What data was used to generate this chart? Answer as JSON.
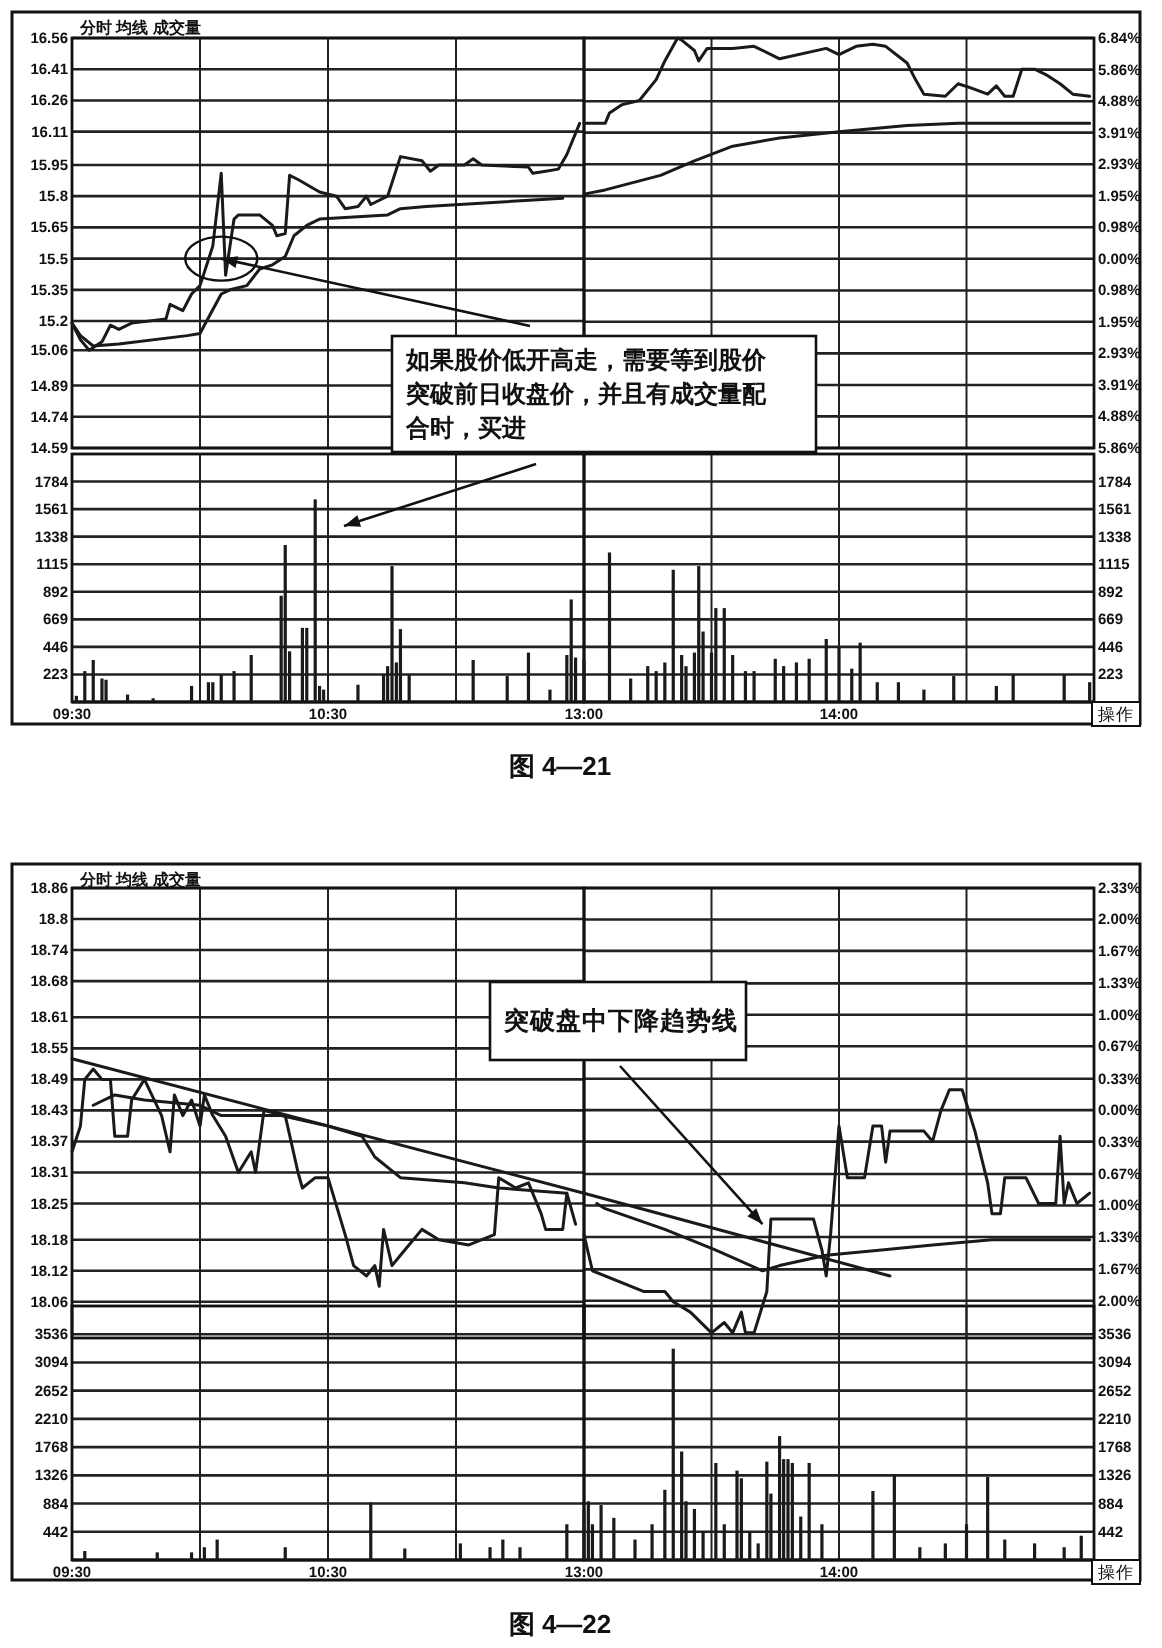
{
  "chart_data": [
    {
      "type": "line",
      "title": "分时 均线 成交量",
      "xlim": [
        9.5,
        11.5
      ],
      "ylim": [
        14.59,
        16.56
      ],
      "grid": true,
      "tick_labels": "y",
      "xticks": [
        {
          "value": 9.5,
          "label": null
        },
        {
          "value": 10,
          "label": null
        },
        {
          "value": 10.5,
          "label": null
        },
        {
          "value": 11,
          "label": null
        }
      ],
      "yticks": [
        14.59,
        14.74,
        14.89,
        15.06,
        15.2,
        15.35,
        15.5,
        15.65,
        15.8,
        15.95,
        16.11,
        16.26,
        16.41,
        16.56
      ],
      "series": [
        {
          "color": "#1a1a1a",
          "x": [
            9.5,
            9.533,
            9.567,
            9.617,
            9.65,
            9.683,
            9.733,
            9.867,
            9.883,
            9.933,
            9.967,
            10,
            10.05,
            10.083,
            10.1,
            10.133,
            10.15,
            10.233,
            10.283,
            10.3,
            10.333,
            10.35,
            10.383,
            10.467,
            10.533,
            10.567,
            10.617,
            10.65,
            10.667,
            10.733,
            10.783,
            10.867,
            10.9,
            10.933,
            11.033,
            11.067,
            11.1,
            11.283,
            11.3,
            11.35,
            11.4,
            11.433,
            11.483
          ],
          "values": [
            15.19,
            15.11,
            15.06,
            15.1,
            15.18,
            15.16,
            15.19,
            15.21,
            15.28,
            15.25,
            15.33,
            15.37,
            15.56,
            15.91,
            15.42,
            15.69,
            15.71,
            15.71,
            15.66,
            15.61,
            15.62,
            15.9,
            15.88,
            15.82,
            15.8,
            15.74,
            15.75,
            15.8,
            15.76,
            15.8,
            15.99,
            15.97,
            15.92,
            15.95,
            15.95,
            15.98,
            15.95,
            15.94,
            15.91,
            15.92,
            15.93,
            16.0,
            16.15
          ]
        },
        {
          "color": "#1a1a1a",
          "x": [
            9.5,
            9.533,
            9.583,
            9.683,
            9.95,
            10,
            10.017,
            10.083,
            10.117,
            10.183,
            10.233,
            10.283,
            10.333,
            10.367,
            10.417,
            10.467,
            10.733,
            10.783,
            10.883,
            11.417
          ],
          "values": [
            15.19,
            15.13,
            15.08,
            15.09,
            15.13,
            15.14,
            15.18,
            15.33,
            15.35,
            15.37,
            15.45,
            15.47,
            15.51,
            15.61,
            15.66,
            15.69,
            15.71,
            15.74,
            15.75,
            15.79
          ]
        }
      ],
      "annotations": [
        {
          "text": "如果股价低开高走，需要等到股价突破前日收盘价，并且有成交量配合时，买进",
          "x": 10.083,
          "y": 15.5
        }
      ]
    },
    {
      "type": "line",
      "xlim": [
        13,
        15
      ],
      "ylim": [
        14.59,
        16.56
      ],
      "grid": true,
      "tick_labels": "y",
      "xticks": [
        {
          "value": 13,
          "label": null
        },
        {
          "value": 13.5,
          "label": null
        },
        {
          "value": 14,
          "label": null
        },
        {
          "value": 14.5,
          "label": null
        }
      ],
      "y2lim": [
        -5.86,
        6.84
      ],
      "y2ticks": [
        {
          "value": -5.86,
          "label": "5.86%"
        },
        {
          "value": -4.88,
          "label": "4.88%"
        },
        {
          "value": -3.91,
          "label": "3.91%"
        },
        {
          "value": -2.93,
          "label": "2.93%"
        },
        {
          "value": -1.95,
          "label": "1.95%"
        },
        {
          "value": -0.98,
          "label": "0.98%"
        },
        {
          "value": 0,
          "label": "0.00%"
        },
        {
          "value": 0.98,
          "label": "0.98%"
        },
        {
          "value": 1.95,
          "label": "1.95%"
        },
        {
          "value": 2.93,
          "label": "2.93%"
        },
        {
          "value": 3.91,
          "label": "3.91%"
        },
        {
          "value": 4.88,
          "label": "4.88%"
        },
        {
          "value": 5.86,
          "label": "5.86%"
        },
        {
          "value": 6.84,
          "label": "6.84%"
        }
      ],
      "series": [
        {
          "color": "#1a1a1a",
          "x": [
            13,
            13.083,
            13.1,
            13.15,
            13.217,
            13.283,
            13.317,
            13.367,
            13.383,
            13.433,
            13.45,
            13.483,
            13.583,
            13.667,
            13.767,
            13.95,
            14,
            14.067,
            14.133,
            14.183,
            14.267,
            14.3,
            14.333,
            14.417,
            14.467,
            14.517,
            14.583,
            14.617,
            14.65,
            14.683,
            14.717,
            14.767,
            14.817,
            14.867,
            14.917,
            14.983
          ],
          "values": [
            16.15,
            16.15,
            16.2,
            16.24,
            16.26,
            16.36,
            16.45,
            16.56,
            16.55,
            16.5,
            16.45,
            16.51,
            16.51,
            16.52,
            16.46,
            16.51,
            16.48,
            16.52,
            16.53,
            16.52,
            16.44,
            16.36,
            16.29,
            16.28,
            16.34,
            16.32,
            16.29,
            16.33,
            16.28,
            16.28,
            16.41,
            16.41,
            16.38,
            16.34,
            16.29,
            16.28
          ]
        },
        {
          "color": "#1a1a1a",
          "x": [
            13,
            13.083,
            13.3,
            13.433,
            13.583,
            13.767,
            14,
            14.267,
            14.467,
            14.983
          ],
          "values": [
            15.81,
            15.83,
            15.9,
            15.97,
            16.04,
            16.08,
            16.11,
            16.14,
            16.15,
            16.15
          ]
        }
      ]
    },
    {
      "type": "bar",
      "xlim": [
        9.5,
        11.5
      ],
      "ylim": [
        0,
        2007
      ],
      "grid": true,
      "color": "#1a1a1a",
      "xticks": [
        {
          "value": 9.5,
          "label": "09:30"
        },
        {
          "value": 10,
          "label": null
        },
        {
          "value": 10.5,
          "label": "10:30"
        },
        {
          "value": 11,
          "label": null
        }
      ],
      "yticks": [
        223,
        446,
        669,
        892,
        1115,
        1338,
        1561,
        1784
      ],
      "x": [
        9.517,
        9.55,
        9.583,
        9.617,
        9.633,
        9.717,
        9.817,
        9.967,
        10.033,
        10.05,
        10.083,
        10.133,
        10.2,
        10.317,
        10.333,
        10.35,
        10.4,
        10.417,
        10.45,
        10.467,
        10.483,
        10.617,
        10.717,
        10.733,
        10.75,
        10.767,
        10.783,
        10.817,
        11.067,
        11.2,
        11.283,
        11.367,
        11.433,
        11.45,
        11.467
      ],
      "values": [
        50,
        250,
        340,
        190,
        180,
        60,
        30,
        130,
        160,
        160,
        220,
        250,
        380,
        860,
        1270,
        410,
        600,
        600,
        1640,
        130,
        100,
        140,
        220,
        290,
        1100,
        320,
        590,
        220,
        340,
        210,
        400,
        100,
        380,
        830,
        360
      ]
    },
    {
      "type": "bar",
      "xlim": [
        13,
        15
      ],
      "ylim": [
        0,
        2007
      ],
      "grid": true,
      "color": "#1a1a1a",
      "xticks": [
        {
          "value": 13,
          "label": "13:00"
        },
        {
          "value": 13.5,
          "label": null
        },
        {
          "value": 14,
          "label": "14:00"
        },
        {
          "value": 14.5,
          "label": null
        }
      ],
      "yticks": [
        223,
        446,
        669,
        892,
        1115,
        1338,
        1561,
        1784
      ],
      "x": [
        13,
        13.1,
        13.183,
        13.25,
        13.283,
        13.317,
        13.35,
        13.383,
        13.4,
        13.433,
        13.45,
        13.467,
        13.5,
        13.517,
        13.55,
        13.583,
        13.633,
        13.667,
        13.75,
        13.783,
        13.833,
        13.883,
        13.95,
        14,
        14.05,
        14.083,
        14.15,
        14.233,
        14.333,
        14.45,
        14.617,
        14.683,
        14.883,
        14.983
      ],
      "values": [
        340,
        1210,
        190,
        290,
        250,
        320,
        1070,
        380,
        290,
        400,
        1100,
        570,
        400,
        760,
        760,
        380,
        250,
        250,
        350,
        290,
        320,
        350,
        510,
        450,
        270,
        480,
        160,
        160,
        100,
        210,
        130,
        220,
        220,
        160
      ],
      "annotations": [
        "操作",
        "图 4—21"
      ]
    },
    {
      "type": "line",
      "title": "分时 均线 成交量",
      "xlim": [
        9.5,
        11.5
      ],
      "ylim": [
        17.99,
        18.86
      ],
      "grid": true,
      "tick_labels": "y",
      "xticks": [
        {
          "value": 9.5,
          "label": null
        },
        {
          "value": 10,
          "label": null
        },
        {
          "value": 10.5,
          "label": null
        },
        {
          "value": 11,
          "label": null
        }
      ],
      "yticks": [
        18.06,
        18.12,
        18.18,
        18.25,
        18.31,
        18.37,
        18.43,
        18.49,
        18.55,
        18.61,
        18.68,
        18.74,
        18.8,
        18.86
      ],
      "series": [
        {
          "color": "#1a1a1a",
          "x": [
            9.5,
            9.533,
            9.55,
            9.583,
            9.617,
            9.65,
            9.667,
            9.717,
            9.733,
            9.783,
            9.85,
            9.883,
            9.9,
            9.933,
            9.967,
            10,
            10.017,
            10.05,
            10.1,
            10.15,
            10.2,
            10.217,
            10.25,
            10.333,
            10.383,
            10.4,
            10.45,
            10.5,
            10.567,
            10.6,
            10.65,
            10.683,
            10.7,
            10.717,
            10.75,
            10.783,
            10.867,
            10.933,
            11.05,
            11.15,
            11.167,
            11.233,
            11.283,
            11.333,
            11.35,
            11.417,
            11.433,
            11.467
          ],
          "values": [
            18.35,
            18.4,
            18.49,
            18.51,
            18.49,
            18.49,
            18.38,
            18.38,
            18.45,
            18.49,
            18.42,
            18.35,
            18.46,
            18.42,
            18.45,
            18.4,
            18.46,
            18.42,
            18.38,
            18.31,
            18.35,
            18.31,
            18.43,
            18.42,
            18.31,
            18.28,
            18.3,
            18.3,
            18.19,
            18.13,
            18.11,
            18.13,
            18.09,
            18.2,
            18.13,
            18.15,
            18.2,
            18.18,
            18.17,
            18.19,
            18.3,
            18.28,
            18.29,
            18.23,
            18.2,
            18.2,
            18.27,
            18.21
          ]
        },
        {
          "color": "#1a1a1a",
          "x": [
            9.583,
            9.667,
            9.783,
            10,
            10.083,
            10.317,
            10.5,
            10.633,
            10.683,
            10.783,
            11.033,
            11.167,
            11.433
          ],
          "values": [
            18.44,
            18.46,
            18.45,
            18.44,
            18.42,
            18.42,
            18.4,
            18.38,
            18.34,
            18.3,
            18.29,
            18.28,
            18.27
          ]
        },
        {
          "color": "#1a1a1a",
          "x": [
            9.5,
            11.5
          ],
          "values": [
            18.53,
            18.27
          ]
        }
      ]
    },
    {
      "type": "line",
      "xlim": [
        13,
        15
      ],
      "ylim": [
        17.99,
        18.86
      ],
      "grid": true,
      "tick_labels": "y",
      "xticks": [
        {
          "value": 13,
          "label": null
        },
        {
          "value": 13.5,
          "label": null
        },
        {
          "value": 14,
          "label": null
        },
        {
          "value": 14.5,
          "label": null
        }
      ],
      "y2lim": [
        -2.39,
        2.33
      ],
      "y2ticks": [
        {
          "value": -2.0,
          "label": "2.00%"
        },
        {
          "value": -1.67,
          "label": "1.67%"
        },
        {
          "value": -1.33,
          "label": "1.33%"
        },
        {
          "value": -1.0,
          "label": "1.00%"
        },
        {
          "value": -0.67,
          "label": "0.67%"
        },
        {
          "value": -0.33,
          "label": "0.33%"
        },
        {
          "value": 0,
          "label": "0.00%"
        },
        {
          "value": 0.33,
          "label": "0.33%"
        },
        {
          "value": 0.67,
          "label": "0.67%"
        },
        {
          "value": 1.0,
          "label": "1.00%"
        },
        {
          "value": 1.33,
          "label": "1.33%"
        },
        {
          "value": 1.67,
          "label": "1.67%"
        },
        {
          "value": 2.0,
          "label": "2.00%"
        },
        {
          "value": 2.33,
          "label": "2.33%"
        }
      ],
      "series": [
        {
          "color": "#1a1a1a",
          "x": [
            13,
            13.033,
            13.233,
            13.317,
            13.35,
            13.417,
            13.5,
            13.55,
            13.583,
            13.617,
            13.633,
            13.667,
            13.717,
            13.733,
            13.9,
            13.933,
            13.95,
            13.967,
            14,
            14.033,
            14.1,
            14.133,
            14.167,
            14.183,
            14.2,
            14.333,
            14.367,
            14.4,
            14.433,
            14.483,
            14.533,
            14.583,
            14.6,
            14.633,
            14.65,
            14.733,
            14.783,
            14.85,
            14.867,
            14.883,
            14.9,
            14.933,
            14.983
          ],
          "values": [
            18.19,
            18.12,
            18.08,
            18.08,
            18.06,
            18.04,
            18.0,
            18.02,
            18.0,
            18.04,
            18.0,
            18.0,
            18.08,
            18.22,
            18.22,
            18.16,
            18.11,
            18.19,
            18.4,
            18.3,
            18.3,
            18.4,
            18.4,
            18.33,
            18.39,
            18.39,
            18.37,
            18.43,
            18.47,
            18.47,
            18.39,
            18.29,
            18.23,
            18.23,
            18.3,
            18.3,
            18.25,
            18.25,
            18.38,
            18.25,
            18.29,
            18.25,
            18.27
          ]
        },
        {
          "color": "#1a1a1a",
          "x": [
            13.05,
            13.083,
            13.317,
            13.517,
            13.7,
            13.767,
            13.95,
            14.167,
            14.367,
            14.6,
            14.983
          ],
          "values": [
            18.25,
            18.24,
            18.2,
            18.16,
            18.12,
            18.13,
            18.15,
            18.16,
            18.17,
            18.18,
            18.18
          ]
        },
        {
          "color": "#1a1a1a",
          "x": [
            13,
            14.2
          ],
          "values": [
            18.27,
            18.11
          ]
        }
      ],
      "annotations": [
        {
          "text": "突破盘中下降趋势线",
          "x": 13.7,
          "y": 18.21
        }
      ]
    },
    {
      "type": "bar",
      "xlim": [
        9.5,
        11.5
      ],
      "ylim": [
        0,
        3978
      ],
      "grid": true,
      "color": "#1a1a1a",
      "xticks": [
        {
          "value": 9.5,
          "label": "09:30"
        },
        {
          "value": 10,
          "label": null
        },
        {
          "value": 10.5,
          "label": "10:30"
        },
        {
          "value": 11,
          "label": null
        }
      ],
      "yticks": [
        442,
        884,
        1326,
        1768,
        2210,
        2652,
        3094,
        3536
      ],
      "x": [
        9.55,
        9.833,
        9.967,
        10.017,
        10.067,
        10.333,
        10.667,
        10.8,
        11.017,
        11.133,
        11.183,
        11.25,
        11.433
      ],
      "values": [
        140,
        120,
        120,
        200,
        320,
        200,
        900,
        180,
        260,
        200,
        320,
        200,
        560
      ]
    },
    {
      "type": "bar",
      "xlim": [
        13,
        15
      ],
      "ylim": [
        0,
        3978
      ],
      "grid": true,
      "color": "#1a1a1a",
      "xticks": [
        {
          "value": 13,
          "label": "13:00"
        },
        {
          "value": 13.5,
          "label": null
        },
        {
          "value": 14,
          "label": "14:00"
        },
        {
          "value": 14.5,
          "label": null
        }
      ],
      "yticks": [
        442,
        884,
        1326,
        1768,
        2210,
        2652,
        3094,
        3536
      ],
      "x": [
        13,
        13.017,
        13.033,
        13.067,
        13.117,
        13.2,
        13.267,
        13.317,
        13.35,
        13.383,
        13.4,
        13.433,
        13.467,
        13.517,
        13.55,
        13.6,
        13.617,
        13.65,
        13.683,
        13.717,
        13.733,
        13.767,
        13.783,
        13.8,
        13.817,
        13.85,
        13.883,
        13.933,
        14.133,
        14.217,
        14.317,
        14.417,
        14.5,
        14.583,
        14.65,
        14.767,
        14.883,
        14.95
      ],
      "values": [
        780,
        920,
        560,
        860,
        660,
        320,
        560,
        1100,
        3310,
        1700,
        920,
        800,
        440,
        1520,
        560,
        1400,
        1280,
        440,
        260,
        1540,
        1040,
        1940,
        1580,
        1580,
        1520,
        680,
        1520,
        560,
        1080,
        1340,
        200,
        260,
        560,
        1300,
        320,
        260,
        200,
        380
      ],
      "annotations": [
        "操作",
        "图 4—22"
      ]
    }
  ]
}
